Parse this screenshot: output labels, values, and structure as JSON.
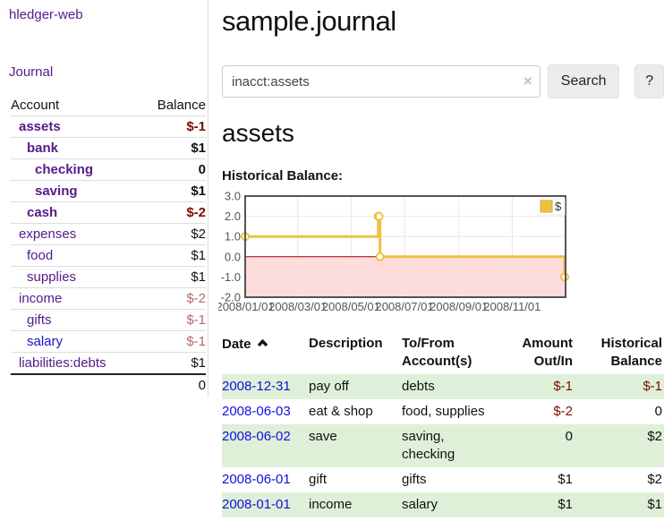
{
  "app": {
    "brand": "hledger-web",
    "nav_journal": "Journal"
  },
  "sidebar": {
    "header_account": "Account",
    "header_balance": "Balance",
    "accounts": [
      {
        "name": "assets",
        "balance": "$-1",
        "depth": 1,
        "bold": true,
        "balance_tone": "dark",
        "link": "purple"
      },
      {
        "name": "bank",
        "balance": "$1",
        "depth": 2,
        "bold": true,
        "balance_tone": "plain",
        "link": "purple"
      },
      {
        "name": "checking",
        "balance": "0",
        "depth": 3,
        "bold": true,
        "balance_tone": "plain",
        "link": "purple"
      },
      {
        "name": "saving",
        "balance": "$1",
        "depth": 3,
        "bold": true,
        "balance_tone": "plain",
        "link": "purple"
      },
      {
        "name": "cash",
        "balance": "$-2",
        "depth": 2,
        "bold": true,
        "balance_tone": "dark",
        "link": "purple"
      },
      {
        "name": "expenses",
        "balance": "$2",
        "depth": 1,
        "bold": false,
        "balance_tone": "plain",
        "link": "purple"
      },
      {
        "name": "food",
        "balance": "$1",
        "depth": 2,
        "bold": false,
        "balance_tone": "plain",
        "link": "purple"
      },
      {
        "name": "supplies",
        "balance": "$1",
        "depth": 2,
        "bold": false,
        "balance_tone": "plain",
        "link": "purple"
      },
      {
        "name": "income",
        "balance": "$-2",
        "depth": 1,
        "bold": false,
        "balance_tone": "light",
        "link": "purple"
      },
      {
        "name": "gifts",
        "balance": "$-1",
        "depth": 2,
        "bold": false,
        "balance_tone": "light",
        "link": "purple"
      },
      {
        "name": "salary",
        "balance": "$-1",
        "depth": 2,
        "bold": false,
        "balance_tone": "light",
        "link": "blue"
      },
      {
        "name": "liabilities:debts",
        "balance": "$1",
        "depth": 1,
        "bold": false,
        "balance_tone": "plain",
        "link": "purple"
      }
    ],
    "total": "0"
  },
  "header": {
    "title": "sample.journal"
  },
  "search": {
    "value": "inacct:assets",
    "clear_icon": "×",
    "button_label": "Search",
    "help_label": "?"
  },
  "register": {
    "heading": "assets",
    "chart_label": "Historical Balance:"
  },
  "chart_data": {
    "type": "line",
    "step": true,
    "title": "Historical Balance:",
    "legend": "$",
    "legend_position": "top-right",
    "series": [
      {
        "name": "$",
        "color": "#edc240",
        "point_fill": "#ffffff",
        "points": [
          [
            "2008-01-01",
            1
          ],
          [
            "2008-06-01",
            2
          ],
          [
            "2008-06-02",
            2
          ],
          [
            "2008-06-03",
            0
          ],
          [
            "2008-12-31",
            -1
          ]
        ]
      }
    ],
    "ylim": [
      -2,
      3
    ],
    "yticks": [
      "3.0",
      "2.0",
      "1.0",
      "0.0",
      "-1.0",
      "-2.0"
    ],
    "ytick_values": [
      3,
      2,
      1,
      0,
      -1,
      -2
    ],
    "xticks": [
      "2008/01/01",
      "2008/03/01",
      "2008/05/01",
      "2008/07/01",
      "2008/09/01",
      "2008/11/01"
    ],
    "xrange": [
      "2008-01-01",
      "2009-01-01"
    ],
    "grid": true,
    "negative_region_color": "#ffdcdc",
    "zero_line_color": "#990000",
    "axis_text_color": "#545454",
    "plot_border_color": "#545454",
    "gridline_color": "#e8e8e8"
  },
  "register_table": {
    "headers": {
      "date": "Date",
      "description": "Description",
      "accounts": "To/From Account(s)",
      "amount": "Amount Out/In",
      "balance": "Historical Balance"
    },
    "rows": [
      {
        "date": "2008-12-31",
        "description": "pay off",
        "accounts": "debts",
        "amount": "$-1",
        "balance": "$-1"
      },
      {
        "date": "2008-06-03",
        "description": "eat & shop",
        "accounts": "food, supplies",
        "amount": "$-2",
        "balance": "0"
      },
      {
        "date": "2008-06-02",
        "description": "save",
        "accounts": "saving, checking",
        "amount": "0",
        "balance": "$2"
      },
      {
        "date": "2008-06-01",
        "description": "gift",
        "accounts": "gifts",
        "amount": "$1",
        "balance": "$2"
      },
      {
        "date": "2008-01-01",
        "description": "income",
        "accounts": "salary",
        "amount": "$1",
        "balance": "$1"
      }
    ]
  }
}
